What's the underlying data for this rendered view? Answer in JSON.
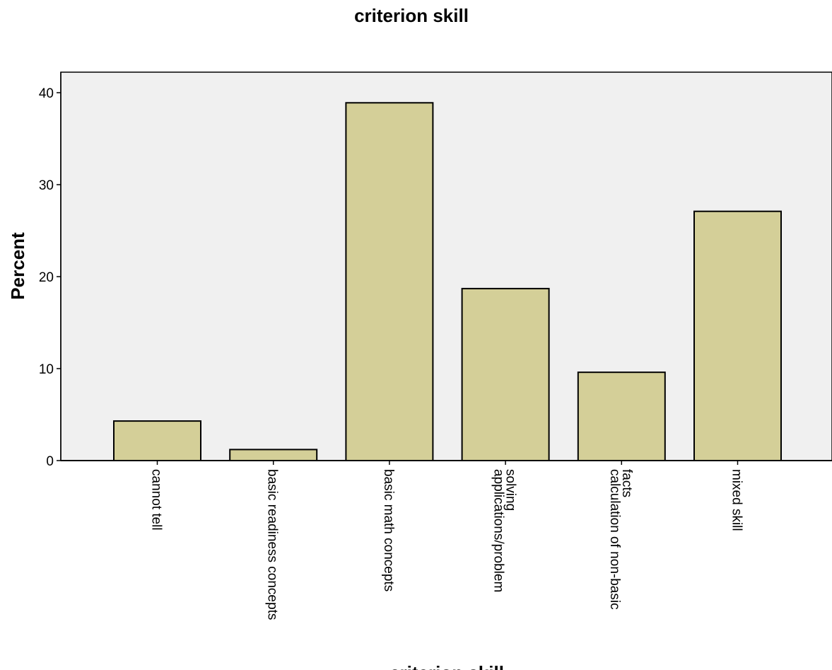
{
  "chart_data": {
    "type": "bar",
    "title": "criterion skill",
    "xlabel": "criterion skill",
    "ylabel": "Percent",
    "categories": [
      [
        "cannot tell"
      ],
      [
        "basic readiness concepts"
      ],
      [
        "basic math concepts"
      ],
      [
        "applications/problem",
        "solving"
      ],
      [
        "calculation of non-basic",
        "facts"
      ],
      [
        "mixed skill"
      ]
    ],
    "values": [
      4.3,
      1.2,
      38.9,
      18.7,
      9.6,
      27.1
    ],
    "ylim": [
      0,
      42
    ],
    "yticks": [
      0,
      10,
      20,
      30,
      40
    ],
    "grid": false,
    "legend": "none",
    "colors": {
      "bar_fill": "#d4cf98",
      "bar_stroke": "#000000",
      "plot_bg": "#f0f0f0"
    }
  }
}
